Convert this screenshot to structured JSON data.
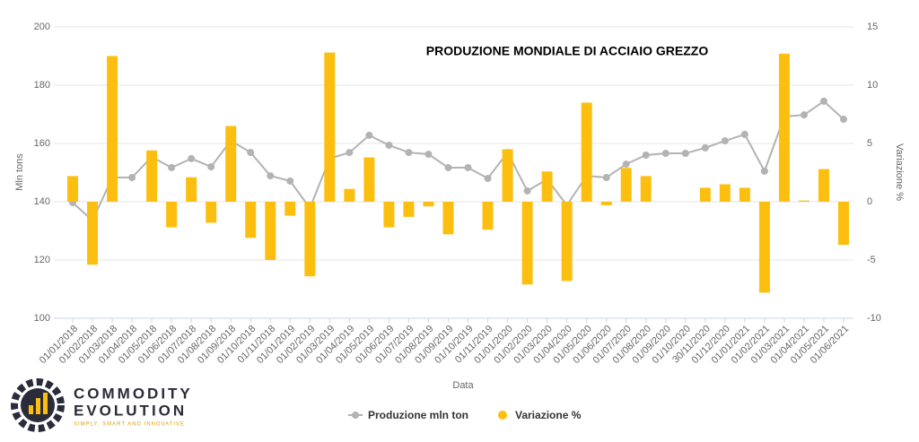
{
  "chart_data": {
    "type": "bar",
    "title": "PRODUZIONE MONDIALE DI ACCIAIO GREZZO",
    "x_label": "Data",
    "y_label": "Mln tons",
    "y2_label": "Variazione %",
    "categories": [
      "01/01/2018",
      "01/02/2018",
      "01/03/2018",
      "01/04/2018",
      "01/05/2018",
      "01/06/2018",
      "01/07/2018",
      "01/08/2018",
      "01/09/2018",
      "01/10/2018",
      "01/11/2018",
      "01/01/2019",
      "01/02/2019",
      "01/03/2019",
      "01/04/2019",
      "01/05/2019",
      "01/06/2019",
      "01/07/2019",
      "01/08/2019",
      "01/09/2019",
      "01/10/2019",
      "01/11/2019",
      "01/01/2020",
      "01/02/2020",
      "01/03/2020",
      "01/04/2020",
      "01/05/2020",
      "01/06/2020",
      "01/07/2020",
      "01/08/2020",
      "01/09/2020",
      "01/10/2020",
      "30/11/2020",
      "01/12/2020",
      "01/01/2021",
      "01/02/2021",
      "01/03/2021",
      "01/04/2021",
      "01/05/2021",
      "01/06/2021"
    ],
    "series": [
      {
        "name": "Produzione mln ton",
        "type": "line",
        "axis": "y",
        "color": "#b3b3b3",
        "values": [
          139.7,
          133.5,
          148.3,
          148.3,
          155.4,
          151.7,
          154.8,
          152,
          160.9,
          156.9,
          148.9,
          147.1,
          137.8,
          154.8,
          156.9,
          162.8,
          159.4,
          156.9,
          156.3,
          151.7,
          151.7,
          148,
          156.9,
          143.7,
          147.7,
          138.8,
          148.9,
          148.3,
          152.9,
          156,
          156.6,
          156.6,
          158.5,
          160.9,
          163.1,
          150.5,
          169.2,
          169.8,
          174.5,
          168.3
        ]
      },
      {
        "name": "Variazione %",
        "type": "bar",
        "axis": "y2",
        "color": "#fdbf0f",
        "values": [
          2.2,
          -5.4,
          12.5,
          0,
          4.4,
          -2.2,
          2.1,
          -1.8,
          6.5,
          -3.1,
          -5,
          -1.2,
          -6.4,
          12.8,
          1.1,
          3.8,
          -2.2,
          -1.3,
          -0.4,
          -2.8,
          0,
          -2.4,
          4.5,
          -7.1,
          2.6,
          -6.8,
          8.5,
          -0.3,
          2.9,
          2.2,
          0,
          0,
          1.2,
          1.5,
          1.2,
          -7.8,
          12.7,
          0.1,
          2.8,
          -3.7
        ]
      }
    ],
    "ylim": [
      100,
      200
    ],
    "yticks": [
      100,
      120,
      140,
      160,
      180,
      200
    ],
    "y2lim": [
      -10,
      15
    ],
    "y2ticks": [
      -10,
      -5,
      0,
      5,
      10,
      15
    ],
    "grid": true,
    "legend": "bottom"
  },
  "logo": {
    "line1": "COMMODITY",
    "line2": "EVOLUTION",
    "tagline": "SIMPLY, SMART AND INNOVATIVE"
  }
}
